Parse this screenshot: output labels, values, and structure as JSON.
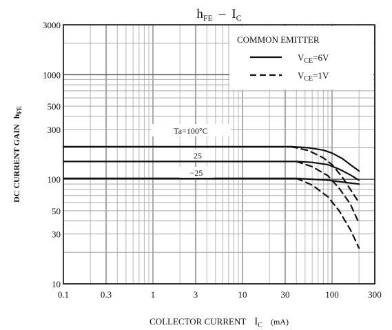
{
  "chart_data": {
    "type": "line",
    "title_main": "h",
    "title_main_sub": "FE",
    "title_dash": "–",
    "title_tail": "I",
    "title_tail_sub": "C",
    "xlabel": "COLLECTOR CURRENT",
    "xlabel_sym": "I",
    "xlabel_sym_sub": "C",
    "xlabel_unit": "(mA)",
    "ylabel": "DC CURRENT GAIN",
    "ylabel_sym": "h",
    "ylabel_sym_sub": "FE",
    "x_scale": "log",
    "y_scale": "log",
    "xlim": [
      0.1,
      300
    ],
    "ylim": [
      10,
      3000
    ],
    "x_ticks": [
      0.1,
      0.3,
      1,
      3,
      10,
      30,
      100,
      300
    ],
    "x_tick_labels": [
      "0.1",
      "0.3",
      "1",
      "3",
      "10",
      "30",
      "100",
      "300"
    ],
    "y_ticks": [
      10,
      30,
      50,
      100,
      300,
      500,
      1000,
      3000
    ],
    "y_tick_labels": [
      "10",
      "30",
      "50",
      "100",
      "300",
      "500",
      "1000",
      "3000"
    ],
    "grid": true,
    "legend": {
      "title": "COMMON EMITTER",
      "placement": "top-right",
      "entries": [
        {
          "style": "solid",
          "label_main": "V",
          "label_sub": "CE",
          "label_tail": "=6V"
        },
        {
          "style": "dashed",
          "label_main": "V",
          "label_sub": "CE",
          "label_tail": "=1V"
        }
      ]
    },
    "annotations": [
      {
        "text": "Ta=100°C",
        "x": 3.5,
        "y": 300
      },
      {
        "text": "25",
        "x": 5.5,
        "y": 166
      },
      {
        "text": "−25",
        "x": 5.5,
        "y": 120
      }
    ],
    "series": [
      {
        "temp": "100",
        "style": "solid",
        "x": [
          0.1,
          35,
          55,
          80,
          100,
          130,
          160,
          200
        ],
        "y": [
          205,
          205,
          200,
          190,
          178,
          158,
          138,
          120
        ]
      },
      {
        "temp": "100",
        "style": "dashed",
        "x": [
          35,
          55,
          80,
          100,
          130,
          160,
          200
        ],
        "y": [
          205,
          188,
          160,
          138,
          105,
          80,
          60
        ]
      },
      {
        "temp": "25",
        "style": "solid",
        "x": [
          0.1,
          40,
          60,
          90,
          120,
          160,
          200
        ],
        "y": [
          148,
          148,
          145,
          138,
          125,
          110,
          98
        ]
      },
      {
        "temp": "25",
        "style": "dashed",
        "x": [
          40,
          60,
          90,
          120,
          160,
          200
        ],
        "y": [
          148,
          132,
          108,
          82,
          58,
          38
        ]
      },
      {
        "temp": "-25",
        "style": "solid",
        "x": [
          0.1,
          40,
          60,
          90,
          120,
          160,
          200
        ],
        "y": [
          102,
          102,
          100,
          98,
          95,
          92,
          90
        ]
      },
      {
        "temp": "-25",
        "style": "dashed",
        "x": [
          40,
          60,
          90,
          120,
          160,
          200
        ],
        "y": [
          102,
          88,
          68,
          50,
          33,
          22
        ]
      }
    ]
  }
}
